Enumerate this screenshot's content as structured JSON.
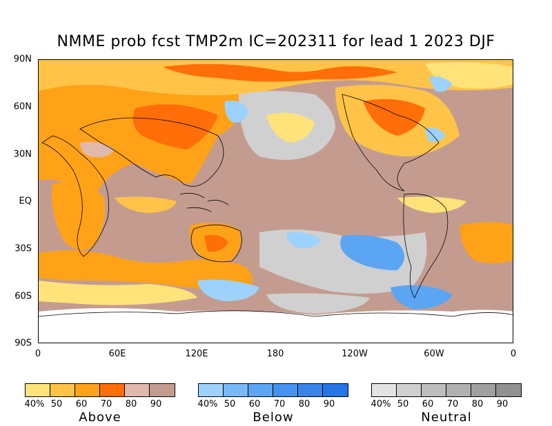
{
  "title": "NMME prob fcst TMP2m IC=202311 for lead 1 2023 DJF",
  "axes": {
    "lat_labels": [
      "90N",
      "60N",
      "30N",
      "EQ",
      "30S",
      "60S",
      "90S"
    ],
    "lon_labels": [
      "0",
      "60E",
      "120E",
      "180",
      "120W",
      "60W",
      "0"
    ]
  },
  "legends": [
    {
      "name": "Above",
      "ticks": [
        "40%",
        "50",
        "60",
        "70",
        "80",
        "90"
      ],
      "colors": [
        "#ffe37a",
        "#ffc447",
        "#ffa218",
        "#ff6e08",
        "#e1b8ad",
        "#c49c8f"
      ]
    },
    {
      "name": "Below",
      "ticks": [
        "40%",
        "50",
        "60",
        "70",
        "80",
        "90"
      ],
      "colors": [
        "#9dd2fd",
        "#7ab9f8",
        "#5ca5f3",
        "#4493ef",
        "#3a84ea",
        "#2575e8"
      ]
    },
    {
      "name": "Neutral",
      "ticks": [
        "40%",
        "50",
        "60",
        "70",
        "80",
        "90"
      ],
      "colors": [
        "#e3e3e3",
        "#d0d0d0",
        "#bebebe",
        "#b0b0b0",
        "#a0a0a0",
        "#919191"
      ]
    }
  ],
  "map_colors": {
    "ocean_default": "#c49c8f",
    "above_light": "#ffe37a",
    "above_mid": "#ffc447",
    "above_strong": "#ffa218",
    "above_max": "#ff6e08",
    "pink": "#e1b8ad",
    "below_light": "#9dd2fd",
    "below_mid": "#5ca5f3",
    "neutral": "#d0d0d0",
    "white": "#ffffff"
  }
}
